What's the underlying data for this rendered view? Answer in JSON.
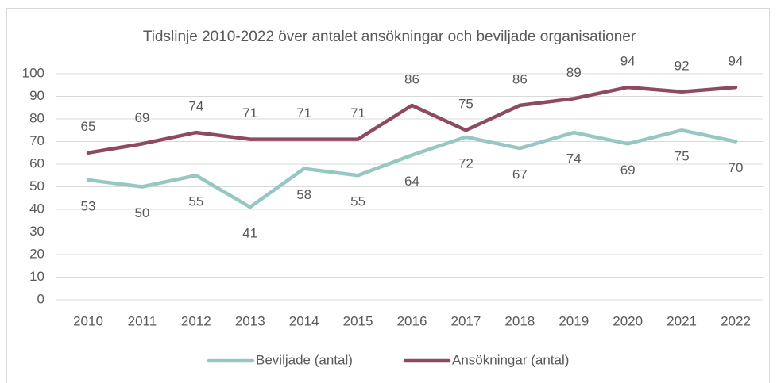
{
  "chart_data": {
    "type": "line",
    "title": "Tidslinje 2010-2022 över antalet ansökningar och beviljade organisationer",
    "categories": [
      "2010",
      "2011",
      "2012",
      "2013",
      "2014",
      "2015",
      "2016",
      "2017",
      "2018",
      "2019",
      "2020",
      "2021",
      "2022"
    ],
    "series": [
      {
        "name": "Beviljade (antal)",
        "color": "#97c7c2",
        "values": [
          53,
          50,
          55,
          41,
          58,
          55,
          64,
          72,
          67,
          74,
          69,
          75,
          70
        ]
      },
      {
        "name": "Ansökningar (antal)",
        "color": "#8e4a62",
        "values": [
          65,
          69,
          74,
          71,
          71,
          71,
          86,
          75,
          86,
          89,
          94,
          92,
          94
        ]
      }
    ],
    "ylim": [
      0,
      100
    ],
    "yticks": [
      0,
      10,
      20,
      30,
      40,
      50,
      60,
      70,
      80,
      90,
      100
    ],
    "grid": true,
    "legend": "bottom"
  }
}
